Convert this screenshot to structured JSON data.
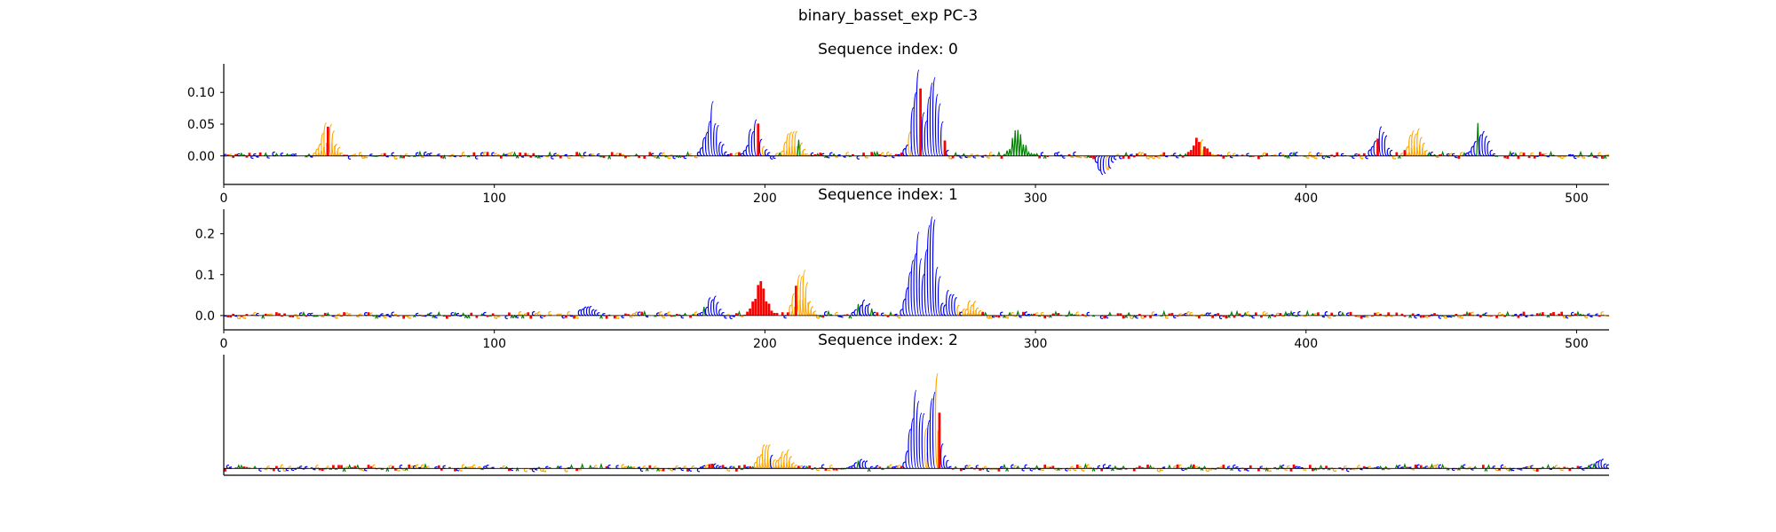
{
  "figure": {
    "title": "binary_basset_exp PC-3",
    "colors": {
      "A": "#008000",
      "C": "#0000ff",
      "G": "#ffa500",
      "T": "#ff0000",
      "axis": "#000000"
    }
  },
  "chart_data": [
    {
      "type": "sequence-logo",
      "title": "Sequence index: 0",
      "xlabel": "",
      "ylabel": "",
      "xlim": [
        0,
        512
      ],
      "ylim": [
        -0.045,
        0.145
      ],
      "xticks": [
        0,
        100,
        200,
        300,
        400,
        500
      ],
      "yticks": [
        0.0,
        0.05,
        0.1
      ],
      "ytick_labels": [
        "0.00",
        "0.05",
        "0.10"
      ],
      "baseline": 0,
      "peaks": [
        {
          "x": 38,
          "height": 0.068,
          "base": "G"
        },
        {
          "x": 180,
          "height": 0.095,
          "base": "C"
        },
        {
          "x": 196,
          "height": 0.065,
          "base": "C"
        },
        {
          "x": 210,
          "height": 0.055,
          "base": "G"
        },
        {
          "x": 256,
          "height": 0.14,
          "base": "C"
        },
        {
          "x": 262,
          "height": 0.14,
          "base": "C"
        },
        {
          "x": 293,
          "height": 0.048,
          "base": "A"
        },
        {
          "x": 325,
          "height": -0.04,
          "base": "C"
        },
        {
          "x": 360,
          "height": 0.038,
          "base": "T"
        },
        {
          "x": 427,
          "height": 0.048,
          "base": "C"
        },
        {
          "x": 440,
          "height": 0.055,
          "base": "G"
        },
        {
          "x": 464,
          "height": 0.06,
          "base": "C"
        }
      ]
    },
    {
      "type": "sequence-logo",
      "title": "Sequence index: 1",
      "xlabel": "",
      "ylabel": "",
      "xlim": [
        0,
        512
      ],
      "ylim": [
        -0.035,
        0.26
      ],
      "xticks": [
        0,
        100,
        200,
        300,
        400,
        500
      ],
      "yticks": [
        0.0,
        0.1,
        0.2
      ],
      "ytick_labels": [
        "0.0",
        "0.1",
        "0.2"
      ],
      "baseline": 0,
      "peaks": [
        {
          "x": 134,
          "height": 0.035,
          "base": "C"
        },
        {
          "x": 180,
          "height": 0.055,
          "base": "C"
        },
        {
          "x": 198,
          "height": 0.09,
          "base": "T"
        },
        {
          "x": 213,
          "height": 0.14,
          "base": "G"
        },
        {
          "x": 236,
          "height": 0.045,
          "base": "C"
        },
        {
          "x": 255,
          "height": 0.25,
          "base": "C"
        },
        {
          "x": 261,
          "height": 0.26,
          "base": "C"
        },
        {
          "x": 268,
          "height": 0.07,
          "base": "C"
        },
        {
          "x": 276,
          "height": 0.04,
          "base": "G"
        }
      ]
    },
    {
      "type": "sequence-logo",
      "title": "Sequence index: 2",
      "xlabel": "",
      "ylabel": "",
      "xlim": [
        0,
        512
      ],
      "ylim": [
        -0.03,
        0.5
      ],
      "xticks": [],
      "yticks": [],
      "ytick_labels": [],
      "baseline": 0,
      "peaks": [
        {
          "x": 180,
          "height": 0.03,
          "base": "C"
        },
        {
          "x": 200,
          "height": 0.15,
          "base": "G"
        },
        {
          "x": 207,
          "height": 0.1,
          "base": "G"
        },
        {
          "x": 235,
          "height": 0.05,
          "base": "C"
        },
        {
          "x": 256,
          "height": 0.46,
          "base": "C"
        },
        {
          "x": 262,
          "height": 0.48,
          "base": "C"
        },
        {
          "x": 448,
          "height": 0.02,
          "base": "G"
        },
        {
          "x": 508,
          "height": 0.05,
          "base": "C"
        }
      ]
    }
  ]
}
